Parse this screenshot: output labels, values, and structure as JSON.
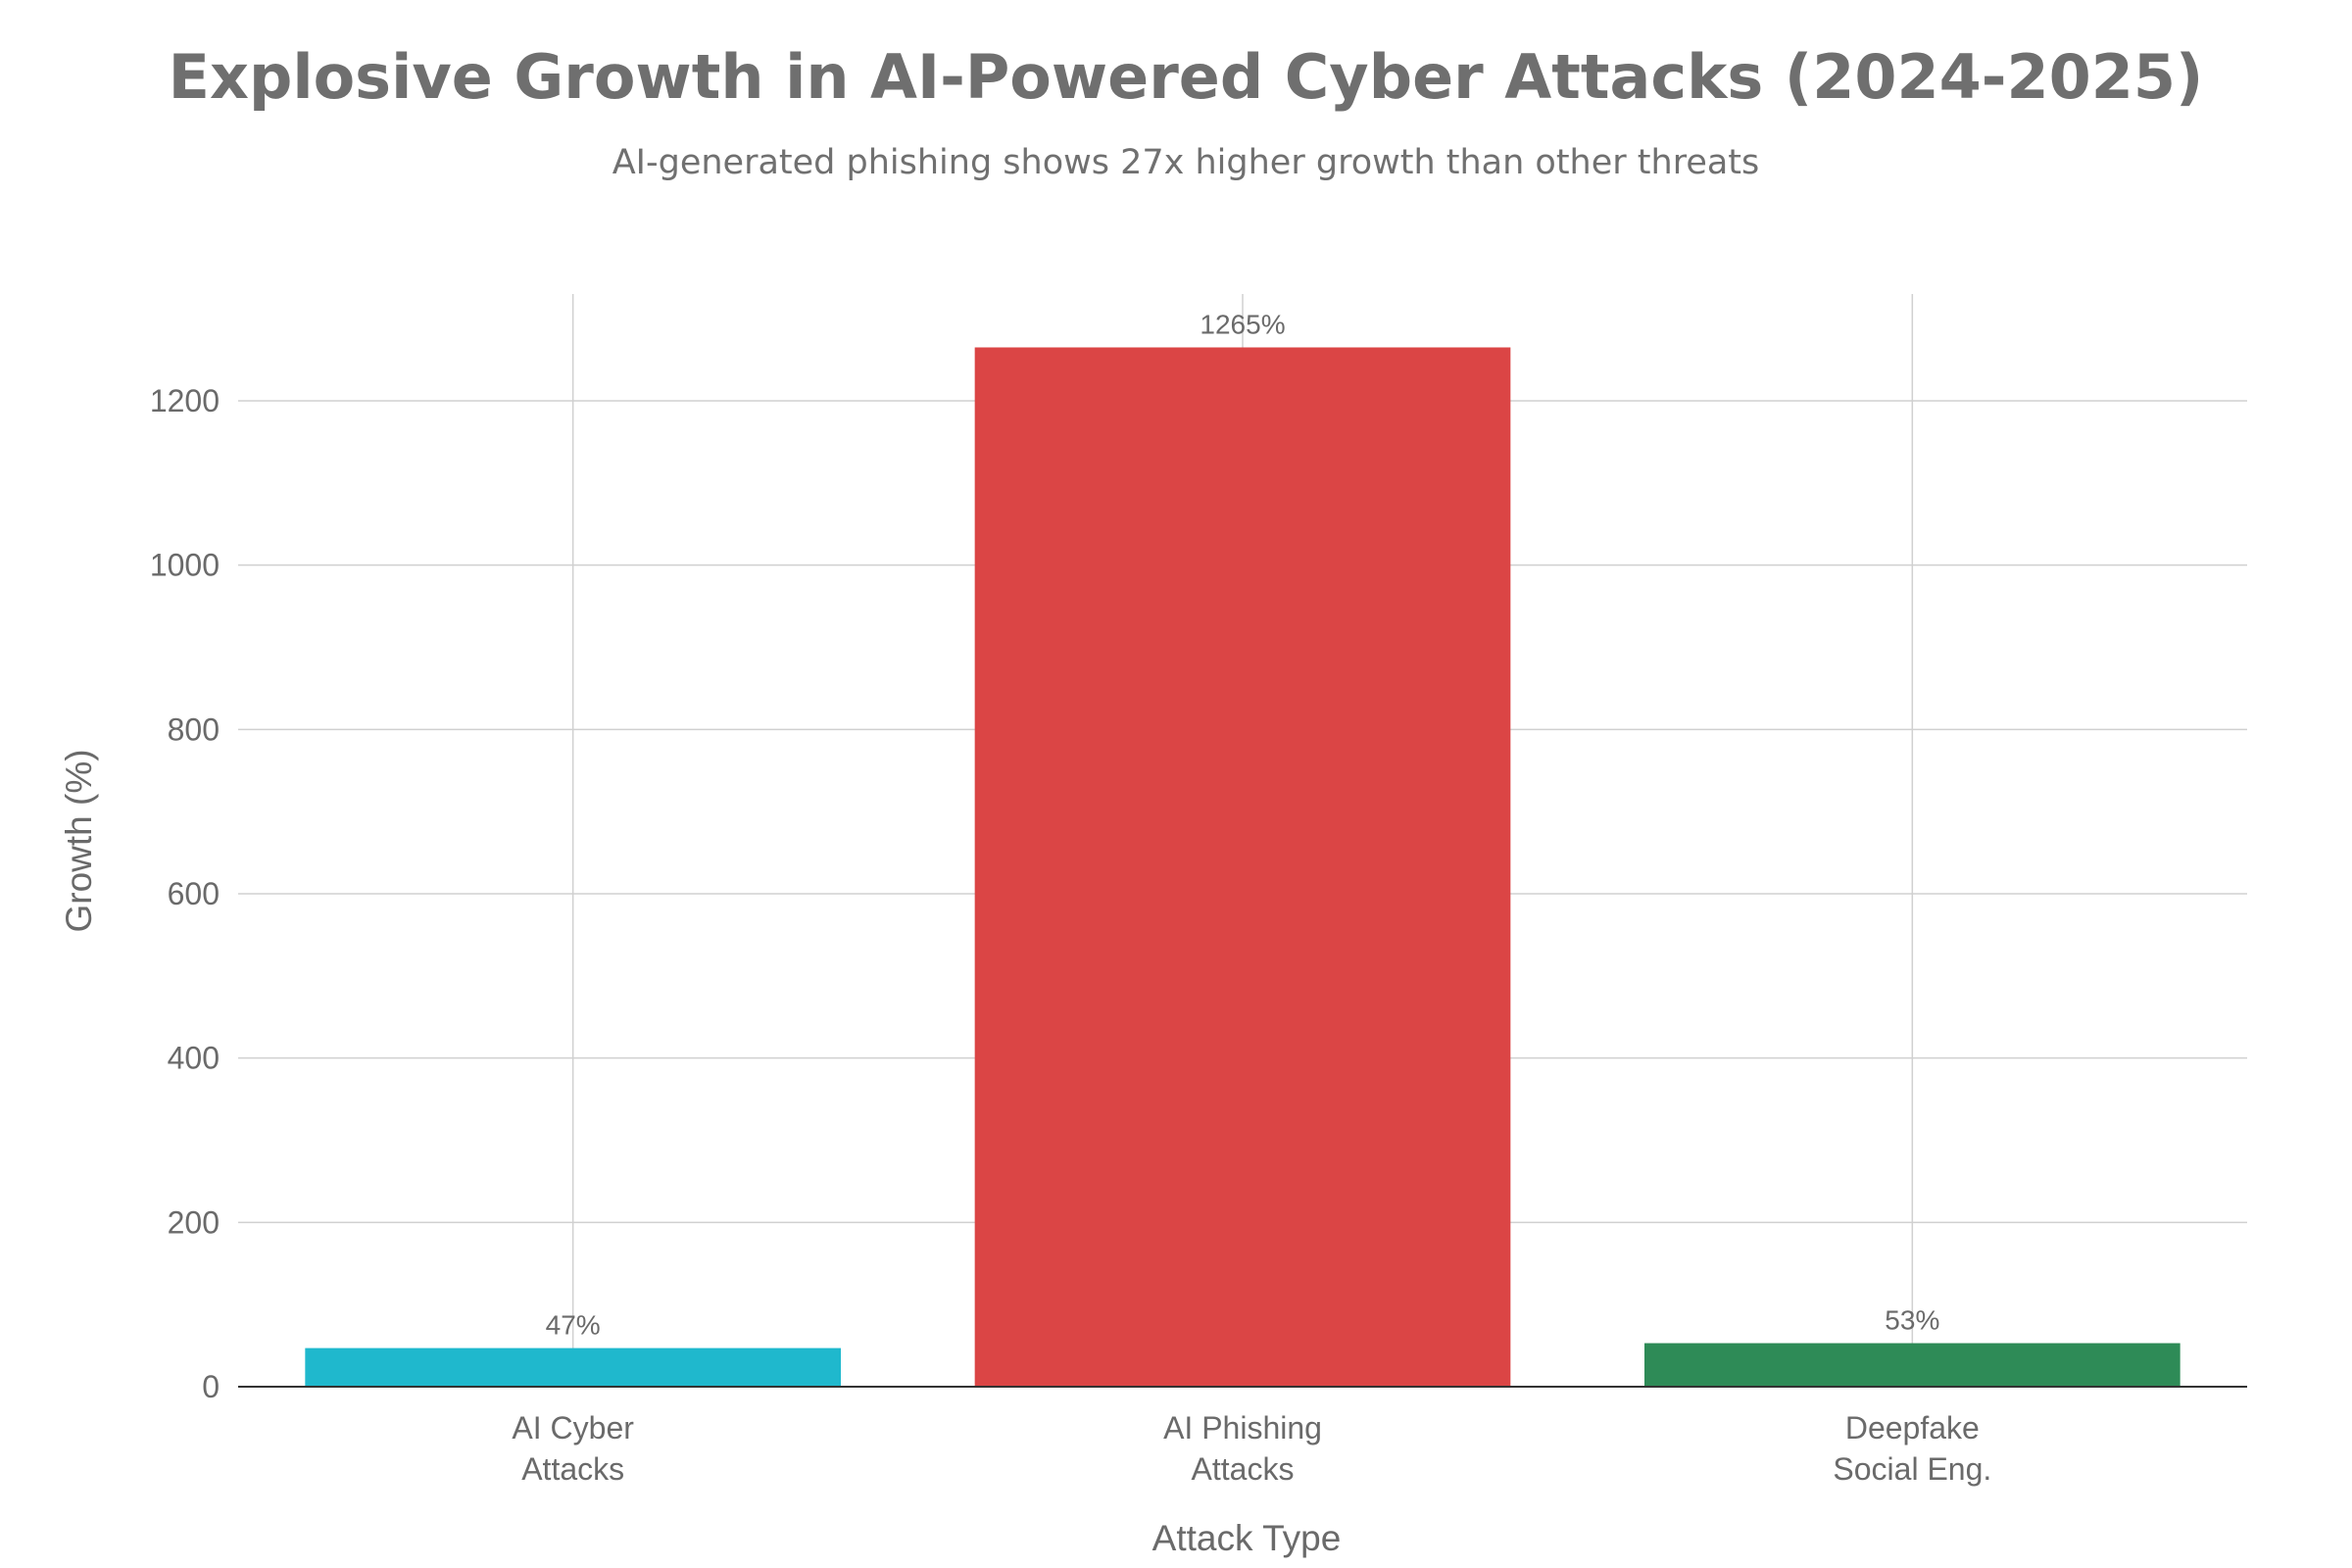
{
  "chart_data": {
    "type": "bar",
    "title": "Explosive Growth in AI-Powered Cyber Attacks (2024-2025)",
    "subtitle": "AI-generated phishing shows 27x higher growth than other threats",
    "xlabel": "Attack Type",
    "ylabel": "Growth (%)",
    "categories": [
      [
        "AI Cyber",
        "Attacks"
      ],
      [
        "AI Phishing",
        "Attacks"
      ],
      [
        "Deepfake",
        "Social Eng."
      ]
    ],
    "values": [
      47,
      1265,
      53
    ],
    "data_labels": [
      "47%",
      "1265%",
      "53%"
    ],
    "colors": [
      "#1fb8cd",
      "#db4545",
      "#2e8b57"
    ],
    "ylim": [
      0,
      1330
    ],
    "yticks": [
      0,
      200,
      400,
      600,
      800,
      1000,
      1200
    ],
    "grid": true,
    "legend": "none"
  }
}
